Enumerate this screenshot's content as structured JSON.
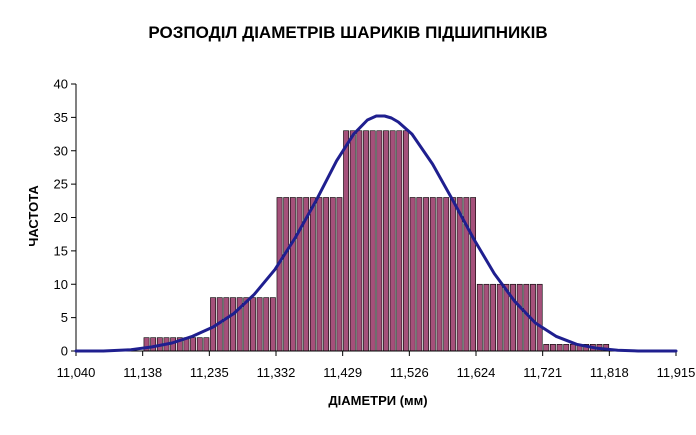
{
  "chart_data": {
    "type": "bar",
    "title": "РОЗПОДІЛ ДІАМЕТРІВ ШАРИКІВ ПІДШИПНИКІВ",
    "xlabel": "ДІАМЕТРИ (мм)",
    "ylabel": "ЧАСТОТА",
    "xlim": [
      11.04,
      11.915
    ],
    "ylim": [
      0,
      40
    ],
    "x_ticks": [
      "11,040",
      "11,138",
      "11,235",
      "11,332",
      "11,429",
      "11,526",
      "11,624",
      "11,721",
      "11,818",
      "11,915"
    ],
    "y_ticks": [
      "0",
      "5",
      "10",
      "15",
      "20",
      "25",
      "30",
      "35",
      "40"
    ],
    "grid": false,
    "legend": "none",
    "histogram": {
      "name": "Частота",
      "bins": [
        {
          "from": 11.04,
          "to": 11.138,
          "value": 0
        },
        {
          "from": 11.138,
          "to": 11.235,
          "value": 2
        },
        {
          "from": 11.235,
          "to": 11.332,
          "value": 8
        },
        {
          "from": 11.332,
          "to": 11.429,
          "value": 23
        },
        {
          "from": 11.429,
          "to": 11.526,
          "value": 33
        },
        {
          "from": 11.526,
          "to": 11.624,
          "value": 23
        },
        {
          "from": 11.624,
          "to": 11.721,
          "value": 10
        },
        {
          "from": 11.721,
          "to": 11.818,
          "value": 1
        },
        {
          "from": 11.818,
          "to": 11.915,
          "value": 0
        }
      ],
      "color": "#A5507A"
    },
    "curve": {
      "type": "line",
      "color": "#1F1F8F",
      "x": [
        11.04,
        11.08,
        11.12,
        11.15,
        11.18,
        11.21,
        11.24,
        11.27,
        11.3,
        11.33,
        11.36,
        11.39,
        11.42,
        11.445,
        11.465,
        11.478,
        11.49,
        11.5,
        11.51,
        11.53,
        11.56,
        11.59,
        11.62,
        11.65,
        11.68,
        11.71,
        11.74,
        11.77,
        11.8,
        11.83,
        11.86,
        11.89,
        11.915
      ],
      "y": [
        0.0,
        0.0,
        0.2,
        0.6,
        1.2,
        2.2,
        3.6,
        5.6,
        8.5,
        12.2,
        17.0,
        22.5,
        28.5,
        32.5,
        34.6,
        35.2,
        35.2,
        34.9,
        34.3,
        32.5,
        28.0,
        22.5,
        16.8,
        11.6,
        7.4,
        4.2,
        2.2,
        1.0,
        0.4,
        0.1,
        0.0,
        0.0,
        0.0
      ]
    }
  }
}
